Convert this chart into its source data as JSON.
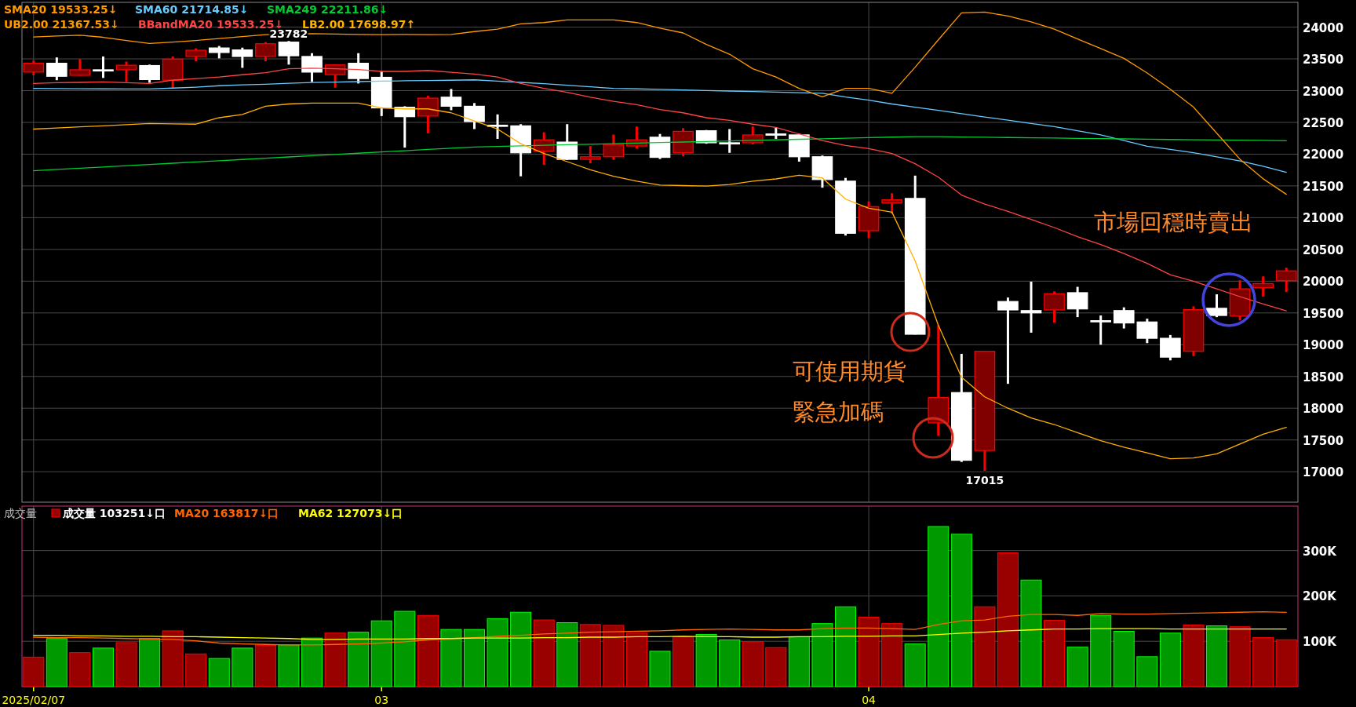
{
  "chart_data": [
    {
      "type": "candlestick",
      "categories": [
        "2025/02/07",
        null,
        null,
        null,
        null,
        null,
        null,
        null,
        null,
        null,
        null,
        null,
        null,
        null,
        null,
        "03",
        null,
        null,
        null,
        null,
        null,
        null,
        null,
        null,
        null,
        null,
        null,
        null,
        null,
        null,
        null,
        null,
        null,
        null,
        null,
        null,
        "04",
        null,
        null,
        null,
        null,
        null,
        null,
        null,
        null,
        null,
        null,
        null,
        null,
        null,
        null,
        null,
        null,
        null,
        null
      ],
      "ohlc": [
        [
          23292,
          23472,
          23241,
          23431
        ],
        [
          23431,
          23523,
          23164,
          23226
        ],
        [
          23241,
          23497,
          23235,
          23328
        ],
        [
          23328,
          23538,
          23200,
          23313
        ],
        [
          23328,
          23456,
          23138,
          23400
        ],
        [
          23395,
          23410,
          23123,
          23174
        ],
        [
          23164,
          23538,
          23046,
          23497
        ],
        [
          23538,
          23667,
          23462,
          23636
        ],
        [
          23672,
          23703,
          23508,
          23600
        ],
        [
          23641,
          23677,
          23359,
          23538
        ],
        [
          23538,
          23764,
          23462,
          23738
        ],
        [
          23764,
          23782,
          23410,
          23549
        ],
        [
          23538,
          23590,
          23138,
          23292
        ],
        [
          23251,
          23410,
          23046,
          23405
        ],
        [
          23431,
          23590,
          23113,
          23190
        ],
        [
          23210,
          23303,
          22600,
          22728
        ],
        [
          22738,
          22754,
          22103,
          22590
        ],
        [
          22600,
          22918,
          22328,
          22882
        ],
        [
          22897,
          23026,
          22692,
          22754
        ],
        [
          22754,
          22805,
          22395,
          22513
        ],
        [
          22456,
          22626,
          22241,
          22441
        ],
        [
          22446,
          22472,
          21651,
          22021
        ],
        [
          22046,
          22344,
          21831,
          22226
        ],
        [
          22190,
          22472,
          21910,
          21918
        ],
        [
          21918,
          22128,
          21856,
          21959
        ],
        [
          21959,
          22308,
          21910,
          22154
        ],
        [
          22128,
          22436,
          22087,
          22226
        ],
        [
          22267,
          22318,
          21923,
          21949
        ],
        [
          22021,
          22410,
          21969,
          22359
        ],
        [
          22369,
          22380,
          22164,
          22179
        ],
        [
          22179,
          22395,
          22021,
          22164
        ],
        [
          22179,
          22436,
          22154,
          22303
        ],
        [
          22318,
          22420,
          22241,
          22303
        ],
        [
          22303,
          22318,
          21882,
          21959
        ],
        [
          21959,
          21979,
          21472,
          21600
        ],
        [
          21575,
          21626,
          20718,
          20754
        ],
        [
          20795,
          21256,
          20677,
          21174
        ],
        [
          21231,
          21385,
          21062,
          21282
        ],
        [
          21303,
          21662,
          19160,
          19164
        ],
        [
          17769,
          19306,
          17564,
          18169
        ],
        [
          18246,
          18856,
          17154,
          17180
        ],
        [
          17334,
          18896,
          17015,
          18896
        ],
        [
          19680,
          19742,
          18384,
          19547
        ],
        [
          19537,
          19993,
          19189,
          19501
        ],
        [
          19547,
          19839,
          19347,
          19803
        ],
        [
          19819,
          19911,
          19434,
          19563
        ],
        [
          19378,
          19460,
          19000,
          19368
        ],
        [
          19537,
          19588,
          19255,
          19342
        ],
        [
          19358,
          19409,
          19025,
          19101
        ],
        [
          19101,
          19153,
          18753,
          18804
        ],
        [
          18896,
          19604,
          18820,
          19552
        ],
        [
          19573,
          19793,
          19434,
          19460
        ],
        [
          19450,
          20013,
          19383,
          19880
        ],
        [
          19896,
          20075,
          19757,
          19962
        ],
        [
          20008,
          20213,
          19829,
          20162
        ]
      ],
      "colors": [
        "#800000",
        "#ffffff",
        "#800000",
        "#ffffff",
        "#800000",
        "#ffffff",
        "#800000",
        "#800000",
        "#ffffff",
        "#ffffff",
        "#800000",
        "#ffffff",
        "#ffffff",
        "#800000",
        "#ffffff",
        "#ffffff",
        "#ffffff",
        "#800000",
        "#ffffff",
        "#ffffff",
        "#ffffff",
        "#ffffff",
        "#800000",
        "#ffffff",
        "#800000",
        "#800000",
        "#800000",
        "#ffffff",
        "#800000",
        "#ffffff",
        "#ffffff",
        "#800000",
        "#ffffff",
        "#ffffff",
        "#ffffff",
        "#ffffff",
        "#800000",
        "#800000",
        "#ffffff",
        "#800000",
        "#ffffff",
        "#800000",
        "#ffffff",
        "#ffffff",
        "#800000",
        "#ffffff",
        "#ffffff",
        "#ffffff",
        "#ffffff",
        "#ffffff",
        "#800000",
        "#ffffff",
        "#800000",
        "#800000",
        "#800000"
      ],
      "series": [
        {
          "type": "line",
          "name": "SMA60 21714.85↓",
          "color": "#66ccff",
          "values": [
            23036,
            23033,
            23030,
            23028,
            23026,
            23026,
            23040,
            23055,
            23077,
            23090,
            23100,
            23115,
            23128,
            23135,
            23142,
            23149,
            23155,
            23160,
            23164,
            23170,
            23150,
            23130,
            23110,
            23085,
            23060,
            23036,
            23028,
            23019,
            23010,
            23002,
            22994,
            22985,
            22976,
            22968,
            22959,
            22900,
            22850,
            22790,
            22739,
            22690,
            22637,
            22586,
            22535,
            22484,
            22432,
            22368,
            22304,
            22215,
            22125,
            22074,
            22022,
            21958,
            21894,
            21810,
            21715
          ]
        },
        {
          "type": "line",
          "name": "SMA249 22211.86↓",
          "color": "#00cc33",
          "values": [
            21739,
            21759,
            21778,
            21798,
            21818,
            21838,
            21857,
            21877,
            21897,
            21916,
            21936,
            21956,
            21975,
            21995,
            22015,
            22034,
            22054,
            22074,
            22093,
            22113,
            22122,
            22130,
            22139,
            22148,
            22156,
            22165,
            22174,
            22182,
            22191,
            22199,
            22208,
            22217,
            22225,
            22234,
            22243,
            22251,
            22260,
            22268,
            22277,
            22275,
            22270,
            22266,
            22262,
            22258,
            22253,
            22249,
            22244,
            22240,
            22235,
            22231,
            22227,
            22224,
            22220,
            22216,
            22212
          ]
        },
        {
          "type": "line",
          "name": "UB2.00 21367.53↓",
          "color": "#ff9900",
          "values": [
            23846,
            23860,
            23872,
            23840,
            23790,
            23744,
            23764,
            23790,
            23820,
            23850,
            23882,
            23890,
            23897,
            23890,
            23885,
            23882,
            23885,
            23882,
            23885,
            23930,
            23969,
            24051,
            24072,
            24113,
            24113,
            24113,
            24072,
            23985,
            23908,
            23728,
            23574,
            23344,
            23215,
            23036,
            22903,
            23036,
            23036,
            22959,
            23370,
            23800,
            24225,
            24236,
            24174,
            24082,
            23969,
            23815,
            23662,
            23508,
            23278,
            23021,
            22740,
            22330,
            21920,
            21612,
            21368
          ]
        },
        {
          "type": "line",
          "name": "BBandMA20 19533.25↓",
          "color": "#ff4444",
          "values": [
            23113,
            23125,
            23130,
            23138,
            23125,
            23113,
            23164,
            23190,
            23215,
            23250,
            23282,
            23344,
            23354,
            23345,
            23333,
            23303,
            23303,
            23318,
            23290,
            23260,
            23215,
            23113,
            23036,
            22974,
            22897,
            22831,
            22780,
            22703,
            22651,
            22574,
            22533,
            22472,
            22420,
            22318,
            22215,
            22138,
            22087,
            22010,
            21850,
            21638,
            21356,
            21213,
            21100,
            20972,
            20844,
            20700,
            20577,
            20434,
            20280,
            20101,
            19998,
            19880,
            19757,
            19640,
            19533
          ]
        },
        {
          "type": "line",
          "name": "LB2.00 17698.97↑",
          "color": "#ffb000",
          "values": [
            22395,
            22412,
            22429,
            22446,
            22464,
            22482,
            22477,
            22472,
            22574,
            22626,
            22754,
            22790,
            22805,
            22805,
            22805,
            22728,
            22713,
            22713,
            22651,
            22523,
            22395,
            22164,
            22010,
            21882,
            21754,
            21651,
            21574,
            21513,
            21505,
            21497,
            21523,
            21574,
            21610,
            21667,
            21626,
            21292,
            21149,
            21087,
            20320,
            19306,
            18487,
            18179,
            18000,
            17846,
            17743,
            17615,
            17487,
            17385,
            17298,
            17205,
            17216,
            17282,
            17436,
            17590,
            17699
          ]
        }
      ],
      "ylim": [
        16520,
        24390
      ],
      "yticks": [
        17000,
        17500,
        18000,
        18500,
        19000,
        19500,
        20000,
        20500,
        21000,
        21500,
        22000,
        22500,
        23000,
        23500,
        24000
      ],
      "grid": true,
      "tick_labels": "y",
      "legend": "top left",
      "annotations": [
        "SMA20 19533.25↓",
        "23782",
        "17015",
        "可使用期貨",
        "緊急加碼",
        "市場回穩時賣出"
      ]
    },
    {
      "type": "bar",
      "title": "成交量",
      "categories": [
        "2025/02/07",
        null,
        null,
        null,
        null,
        null,
        null,
        null,
        null,
        null,
        null,
        null,
        null,
        null,
        null,
        "03",
        null,
        null,
        null,
        null,
        null,
        null,
        null,
        null,
        null,
        null,
        null,
        null,
        null,
        null,
        null,
        null,
        null,
        null,
        null,
        null,
        "04",
        null,
        null,
        null,
        null,
        null,
        null,
        null,
        null,
        null,
        null,
        null,
        null,
        null,
        null,
        null,
        null,
        null,
        null
      ],
      "series": [
        {
          "name": "成交量 103251↓口",
          "values": [
            65000,
            106000,
            75000,
            85000,
            97000,
            106000,
            123000,
            72000,
            62000,
            85000,
            91000,
            92000,
            107000,
            118000,
            120000,
            145000,
            166000,
            157000,
            126000,
            126000,
            150000,
            164000,
            147000,
            141000,
            137000,
            135000,
            118000,
            78000,
            110000,
            115000,
            103000,
            99000,
            86000,
            110000,
            139000,
            176000,
            153000,
            139000,
            94000,
            353000,
            336000,
            176000,
            295000,
            235000,
            146000,
            87000,
            157000,
            122000,
            66000,
            118000,
            136000,
            134000,
            132000,
            108000,
            103251
          ],
          "colors": [
            "#990000",
            "#009900",
            "#990000",
            "#009900",
            "#990000",
            "#009900",
            "#990000",
            "#990000",
            "#009900",
            "#009900",
            "#990000",
            "#009900",
            "#009900",
            "#990000",
            "#009900",
            "#009900",
            "#009900",
            "#990000",
            "#009900",
            "#009900",
            "#009900",
            "#009900",
            "#990000",
            "#009900",
            "#990000",
            "#990000",
            "#990000",
            "#009900",
            "#990000",
            "#009900",
            "#009900",
            "#990000",
            "#990000",
            "#009900",
            "#009900",
            "#009900",
            "#990000",
            "#990000",
            "#009900",
            "#009900",
            "#009900",
            "#990000",
            "#990000",
            "#009900",
            "#990000",
            "#009900",
            "#009900",
            "#009900",
            "#009900",
            "#009900",
            "#990000",
            "#009900",
            "#990000",
            "#990000",
            "#990000"
          ]
        },
        {
          "type": "line",
          "name": "MA20 163817↓口",
          "color": "#ff6600",
          "values": [
            109000,
            108000,
            108000,
            107000,
            106000,
            105000,
            104000,
            101000,
            96000,
            94000,
            93000,
            92000,
            92000,
            93000,
            94000,
            96000,
            99000,
            103000,
            106000,
            108000,
            111000,
            113000,
            116000,
            118000,
            120000,
            121000,
            122000,
            123000,
            125000,
            126000,
            127000,
            126000,
            125000,
            125000,
            128000,
            129000,
            129000,
            128000,
            126000,
            137000,
            145000,
            147000,
            155000,
            159000,
            159000,
            157000,
            161000,
            160000,
            160000,
            161000,
            162000,
            163000,
            164000,
            165000,
            163817
          ]
        },
        {
          "type": "line",
          "name": "MA62 127073↓口",
          "color": "#ffff00",
          "values": [
            113000,
            113000,
            112000,
            112000,
            111000,
            111000,
            110000,
            110000,
            109000,
            108000,
            107000,
            106000,
            104000,
            104000,
            105000,
            105000,
            105000,
            106000,
            106000,
            107000,
            107000,
            107000,
            108000,
            108000,
            109000,
            109000,
            110000,
            110000,
            111000,
            110000,
            110000,
            109000,
            109000,
            110000,
            110000,
            111000,
            111000,
            112000,
            112000,
            115000,
            118000,
            120000,
            123000,
            125000,
            127000,
            127000,
            128000,
            128000,
            128000,
            127000,
            127000,
            127000,
            127000,
            127000,
            127073
          ]
        }
      ],
      "ylim": [
        0,
        398000
      ],
      "yticks": [
        {
          "value": 100000,
          "label": "100K"
        },
        {
          "value": 200000,
          "label": "200K"
        },
        {
          "value": 300000,
          "label": "300K"
        }
      ],
      "grid": true,
      "legend": "top left"
    }
  ]
}
